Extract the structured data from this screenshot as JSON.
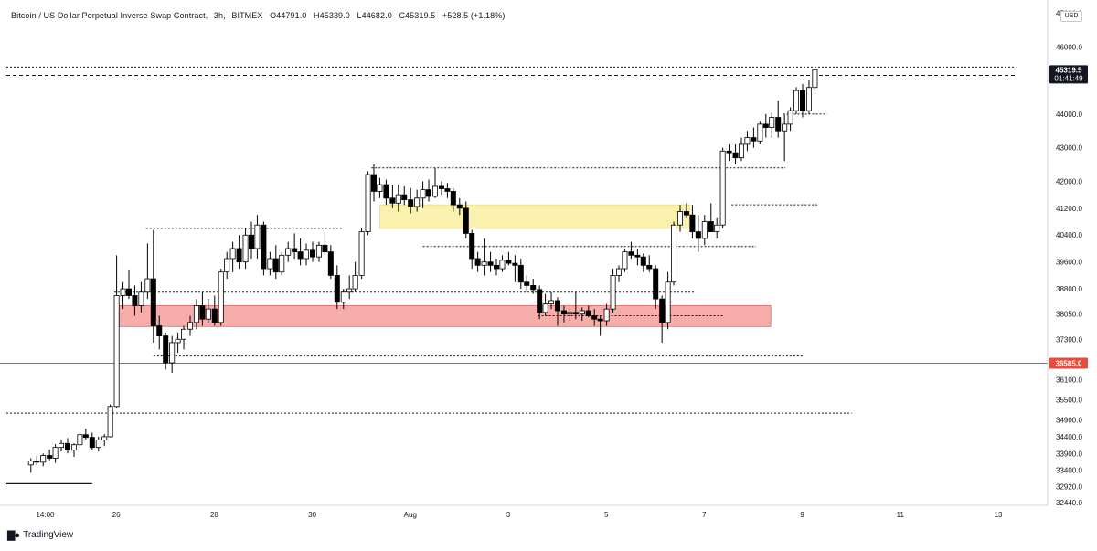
{
  "header": {
    "symbol": "Bitcoin / US Dollar Perpetual Inverse Swap Contract",
    "interval": "3h",
    "exchange": "BITMEX",
    "open": "O44791.0",
    "high": "H45339.0",
    "low": "L44682.0",
    "close": "C45319.5",
    "change": "+528.5 (+1.18%)"
  },
  "currency_label": "USD",
  "branding": "TradingView",
  "colors": {
    "up": "#ffffff",
    "down": "#000000",
    "support_zone": "#f7a6a1",
    "resistance_zone": "#fbf0a6",
    "alert_line": "#e74c3c",
    "text": "#131722",
    "axis_bg": "#ffffff"
  },
  "price_labels": {
    "last_price": "45319.5",
    "countdown": "01:41:49",
    "alert_price": "36585.0"
  },
  "chart_data": {
    "type": "candlestick",
    "x_tick_labels": [
      "14:00",
      "26",
      "28",
      "30",
      "Aug",
      "3",
      "5",
      "7",
      "9",
      "11",
      "13"
    ],
    "y_tick_labels": [
      "47000.0",
      "46000.0",
      "44000.0",
      "43000.0",
      "42000.0",
      "41200.0",
      "40400.0",
      "39600.0",
      "38800.0",
      "38050.0",
      "37300.0",
      "36100.0",
      "35500.0",
      "34900.0",
      "34400.0",
      "33900.0",
      "33400.0",
      "32920.0",
      "32440.0"
    ],
    "ylim": [
      32440,
      47150
    ],
    "x_unit": "days since Jul 25 00:00",
    "candles": [
      {
        "x": 0.5,
        "o": 33560,
        "h": 33760,
        "l": 33330,
        "c": 33680
      },
      {
        "x": 0.62,
        "o": 33680,
        "h": 33820,
        "l": 33540,
        "c": 33640
      },
      {
        "x": 0.75,
        "o": 33640,
        "h": 33900,
        "l": 33520,
        "c": 33840
      },
      {
        "x": 0.88,
        "o": 33840,
        "h": 34020,
        "l": 33700,
        "c": 33760
      },
      {
        "x": 1.0,
        "o": 33760,
        "h": 34180,
        "l": 33620,
        "c": 34080
      },
      {
        "x": 1.12,
        "o": 34080,
        "h": 34320,
        "l": 33960,
        "c": 34200
      },
      {
        "x": 1.25,
        "o": 34200,
        "h": 34360,
        "l": 33900,
        "c": 34000
      },
      {
        "x": 1.38,
        "o": 34000,
        "h": 34200,
        "l": 33800,
        "c": 34160
      },
      {
        "x": 1.5,
        "o": 34160,
        "h": 34560,
        "l": 34060,
        "c": 34460
      },
      {
        "x": 1.62,
        "o": 34460,
        "h": 34640,
        "l": 34320,
        "c": 34380
      },
      {
        "x": 1.75,
        "o": 34380,
        "h": 34520,
        "l": 34020,
        "c": 34080
      },
      {
        "x": 1.88,
        "o": 34080,
        "h": 34400,
        "l": 33960,
        "c": 34300
      },
      {
        "x": 2.0,
        "o": 34300,
        "h": 34480,
        "l": 34120,
        "c": 34400
      },
      {
        "x": 2.12,
        "o": 34400,
        "h": 35360,
        "l": 34380,
        "c": 35300
      },
      {
        "x": 2.25,
        "o": 35300,
        "h": 39800,
        "l": 35240,
        "c": 38600
      },
      {
        "x": 2.38,
        "o": 38600,
        "h": 39000,
        "l": 38200,
        "c": 38800
      },
      {
        "x": 2.5,
        "o": 38800,
        "h": 39350,
        "l": 38500,
        "c": 38600
      },
      {
        "x": 2.62,
        "o": 38600,
        "h": 38900,
        "l": 38000,
        "c": 38300
      },
      {
        "x": 2.75,
        "o": 38300,
        "h": 39000,
        "l": 38100,
        "c": 38700
      },
      {
        "x": 2.88,
        "o": 38700,
        "h": 40150,
        "l": 38500,
        "c": 39100
      },
      {
        "x": 3.0,
        "o": 39100,
        "h": 40550,
        "l": 37200,
        "c": 37700
      },
      {
        "x": 3.12,
        "o": 37700,
        "h": 38000,
        "l": 37000,
        "c": 37400
      },
      {
        "x": 3.25,
        "o": 37400,
        "h": 37500,
        "l": 36400,
        "c": 36600
      },
      {
        "x": 3.38,
        "o": 36600,
        "h": 37400,
        "l": 36300,
        "c": 37200
      },
      {
        "x": 3.5,
        "o": 37200,
        "h": 37500,
        "l": 36900,
        "c": 37300
      },
      {
        "x": 3.62,
        "o": 37300,
        "h": 37700,
        "l": 37000,
        "c": 37600
      },
      {
        "x": 3.75,
        "o": 37600,
        "h": 38000,
        "l": 37400,
        "c": 37800
      },
      {
        "x": 3.88,
        "o": 37800,
        "h": 38500,
        "l": 37600,
        "c": 38300
      },
      {
        "x": 4.0,
        "o": 38300,
        "h": 38700,
        "l": 37700,
        "c": 37900
      },
      {
        "x": 4.12,
        "o": 37900,
        "h": 38500,
        "l": 37800,
        "c": 38200
      },
      {
        "x": 4.25,
        "o": 38200,
        "h": 38600,
        "l": 37700,
        "c": 37800
      },
      {
        "x": 4.38,
        "o": 37800,
        "h": 39400,
        "l": 37700,
        "c": 39300
      },
      {
        "x": 4.5,
        "o": 39300,
        "h": 39900,
        "l": 39100,
        "c": 39700
      },
      {
        "x": 4.62,
        "o": 39700,
        "h": 40200,
        "l": 39300,
        "c": 40000
      },
      {
        "x": 4.75,
        "o": 40000,
        "h": 40400,
        "l": 39400,
        "c": 39600
      },
      {
        "x": 4.88,
        "o": 39600,
        "h": 40600,
        "l": 39400,
        "c": 40400
      },
      {
        "x": 5.0,
        "o": 40400,
        "h": 40800,
        "l": 39700,
        "c": 40000
      },
      {
        "x": 5.12,
        "o": 40000,
        "h": 41000,
        "l": 39700,
        "c": 40700
      },
      {
        "x": 5.25,
        "o": 40700,
        "h": 40800,
        "l": 39200,
        "c": 39400
      },
      {
        "x": 5.38,
        "o": 39400,
        "h": 39900,
        "l": 39200,
        "c": 39700
      },
      {
        "x": 5.5,
        "o": 39700,
        "h": 40100,
        "l": 39100,
        "c": 39300
      },
      {
        "x": 5.62,
        "o": 39300,
        "h": 39900,
        "l": 39200,
        "c": 39800
      },
      {
        "x": 5.75,
        "o": 39800,
        "h": 40200,
        "l": 39600,
        "c": 40000
      },
      {
        "x": 5.88,
        "o": 40000,
        "h": 40450,
        "l": 39700,
        "c": 39900
      },
      {
        "x": 6.0,
        "o": 39900,
        "h": 40300,
        "l": 39500,
        "c": 39700
      },
      {
        "x": 6.12,
        "o": 39700,
        "h": 40150,
        "l": 39500,
        "c": 39950
      },
      {
        "x": 6.25,
        "o": 39950,
        "h": 40200,
        "l": 39600,
        "c": 39750
      },
      {
        "x": 6.38,
        "o": 39750,
        "h": 40200,
        "l": 39600,
        "c": 40100
      },
      {
        "x": 6.5,
        "o": 40100,
        "h": 40500,
        "l": 39800,
        "c": 39900
      },
      {
        "x": 6.62,
        "o": 39900,
        "h": 40100,
        "l": 39100,
        "c": 39200
      },
      {
        "x": 6.75,
        "o": 39200,
        "h": 39500,
        "l": 38200,
        "c": 38400
      },
      {
        "x": 6.88,
        "o": 38400,
        "h": 38800,
        "l": 38200,
        "c": 38700
      },
      {
        "x": 7.0,
        "o": 38700,
        "h": 39200,
        "l": 38500,
        "c": 38800
      },
      {
        "x": 7.12,
        "o": 38800,
        "h": 39600,
        "l": 38700,
        "c": 39200
      },
      {
        "x": 7.25,
        "o": 39200,
        "h": 40600,
        "l": 39100,
        "c": 40500
      },
      {
        "x": 7.38,
        "o": 40500,
        "h": 42300,
        "l": 40400,
        "c": 42200
      },
      {
        "x": 7.5,
        "o": 42200,
        "h": 42500,
        "l": 41400,
        "c": 41700
      },
      {
        "x": 7.62,
        "o": 41700,
        "h": 42100,
        "l": 41500,
        "c": 41900
      },
      {
        "x": 7.75,
        "o": 41900,
        "h": 42050,
        "l": 41300,
        "c": 41500
      },
      {
        "x": 7.88,
        "o": 41500,
        "h": 41900,
        "l": 41200,
        "c": 41350
      },
      {
        "x": 8.0,
        "o": 41350,
        "h": 41900,
        "l": 41100,
        "c": 41600
      },
      {
        "x": 8.12,
        "o": 41600,
        "h": 41850,
        "l": 41300,
        "c": 41450
      },
      {
        "x": 8.25,
        "o": 41450,
        "h": 41800,
        "l": 41050,
        "c": 41250
      },
      {
        "x": 8.38,
        "o": 41250,
        "h": 41750,
        "l": 41100,
        "c": 41500
      },
      {
        "x": 8.5,
        "o": 41500,
        "h": 42000,
        "l": 41200,
        "c": 41750
      },
      {
        "x": 8.62,
        "o": 41750,
        "h": 42050,
        "l": 41400,
        "c": 41550
      },
      {
        "x": 8.75,
        "o": 41550,
        "h": 42400,
        "l": 41500,
        "c": 41850
      },
      {
        "x": 8.88,
        "o": 41850,
        "h": 42000,
        "l": 41600,
        "c": 41780
      },
      {
        "x": 9.0,
        "o": 41780,
        "h": 41950,
        "l": 41500,
        "c": 41700
      },
      {
        "x": 9.12,
        "o": 41700,
        "h": 41800,
        "l": 41100,
        "c": 41300
      },
      {
        "x": 9.25,
        "o": 41300,
        "h": 41500,
        "l": 41000,
        "c": 41200
      },
      {
        "x": 9.38,
        "o": 41200,
        "h": 41400,
        "l": 40300,
        "c": 40450
      },
      {
        "x": 9.5,
        "o": 40450,
        "h": 40550,
        "l": 39400,
        "c": 39700
      },
      {
        "x": 9.62,
        "o": 39700,
        "h": 39900,
        "l": 39300,
        "c": 39500
      },
      {
        "x": 9.75,
        "o": 39500,
        "h": 40300,
        "l": 39200,
        "c": 39600
      },
      {
        "x": 9.88,
        "o": 39600,
        "h": 39900,
        "l": 39300,
        "c": 39500
      },
      {
        "x": 10.0,
        "o": 39500,
        "h": 39700,
        "l": 39200,
        "c": 39400
      },
      {
        "x": 10.12,
        "o": 39400,
        "h": 39800,
        "l": 39300,
        "c": 39650
      },
      {
        "x": 10.25,
        "o": 39650,
        "h": 39900,
        "l": 39500,
        "c": 39560
      },
      {
        "x": 10.38,
        "o": 39560,
        "h": 39800,
        "l": 39000,
        "c": 39500
      },
      {
        "x": 10.5,
        "o": 39500,
        "h": 39700,
        "l": 38800,
        "c": 39000
      },
      {
        "x": 10.62,
        "o": 39000,
        "h": 39200,
        "l": 38700,
        "c": 38900
      },
      {
        "x": 10.75,
        "o": 38900,
        "h": 39100,
        "l": 38650,
        "c": 38780
      },
      {
        "x": 10.88,
        "o": 38780,
        "h": 38900,
        "l": 37900,
        "c": 38100
      },
      {
        "x": 11.0,
        "o": 38100,
        "h": 38650,
        "l": 38000,
        "c": 38350
      },
      {
        "x": 11.12,
        "o": 38350,
        "h": 38700,
        "l": 38200,
        "c": 38450
      },
      {
        "x": 11.25,
        "o": 38450,
        "h": 38550,
        "l": 37700,
        "c": 38150
      },
      {
        "x": 11.38,
        "o": 38150,
        "h": 38300,
        "l": 37800,
        "c": 38050
      },
      {
        "x": 11.5,
        "o": 38050,
        "h": 38200,
        "l": 37850,
        "c": 38100
      },
      {
        "x": 11.62,
        "o": 38100,
        "h": 38700,
        "l": 37900,
        "c": 38050
      },
      {
        "x": 11.75,
        "o": 38050,
        "h": 38250,
        "l": 37850,
        "c": 38150
      },
      {
        "x": 11.88,
        "o": 38150,
        "h": 38300,
        "l": 37950,
        "c": 38000
      },
      {
        "x": 12.0,
        "o": 38000,
        "h": 38200,
        "l": 37700,
        "c": 37900
      },
      {
        "x": 12.12,
        "o": 37900,
        "h": 38000,
        "l": 37400,
        "c": 37850
      },
      {
        "x": 12.25,
        "o": 37850,
        "h": 38350,
        "l": 37700,
        "c": 38200
      },
      {
        "x": 12.38,
        "o": 38200,
        "h": 39400,
        "l": 38100,
        "c": 39200
      },
      {
        "x": 12.5,
        "o": 39200,
        "h": 39500,
        "l": 39000,
        "c": 39400
      },
      {
        "x": 12.62,
        "o": 39400,
        "h": 40000,
        "l": 39300,
        "c": 39900
      },
      {
        "x": 12.75,
        "o": 39900,
        "h": 40200,
        "l": 39700,
        "c": 39800
      },
      {
        "x": 12.88,
        "o": 39800,
        "h": 40000,
        "l": 39500,
        "c": 39750
      },
      {
        "x": 13.0,
        "o": 39750,
        "h": 39850,
        "l": 39300,
        "c": 39500
      },
      {
        "x": 13.12,
        "o": 39500,
        "h": 39800,
        "l": 39300,
        "c": 39400
      },
      {
        "x": 13.25,
        "o": 39400,
        "h": 39500,
        "l": 38200,
        "c": 38500
      },
      {
        "x": 13.38,
        "o": 38500,
        "h": 38600,
        "l": 37200,
        "c": 37800
      },
      {
        "x": 13.5,
        "o": 37800,
        "h": 39300,
        "l": 37600,
        "c": 39000
      },
      {
        "x": 13.62,
        "o": 39000,
        "h": 40800,
        "l": 38900,
        "c": 40700
      },
      {
        "x": 13.75,
        "o": 40700,
        "h": 41300,
        "l": 40500,
        "c": 41100
      },
      {
        "x": 13.88,
        "o": 41100,
        "h": 41350,
        "l": 40900,
        "c": 41000
      },
      {
        "x": 14.0,
        "o": 41000,
        "h": 41300,
        "l": 40300,
        "c": 40500
      },
      {
        "x": 14.12,
        "o": 40500,
        "h": 41000,
        "l": 39900,
        "c": 40300
      },
      {
        "x": 14.25,
        "o": 40300,
        "h": 41000,
        "l": 40100,
        "c": 40800
      },
      {
        "x": 14.38,
        "o": 40800,
        "h": 41350,
        "l": 40600,
        "c": 40500
      },
      {
        "x": 14.5,
        "o": 40500,
        "h": 40900,
        "l": 40300,
        "c": 40700
      },
      {
        "x": 14.62,
        "o": 40700,
        "h": 43000,
        "l": 40600,
        "c": 42900
      },
      {
        "x": 14.75,
        "o": 42900,
        "h": 43100,
        "l": 42600,
        "c": 42850
      },
      {
        "x": 14.88,
        "o": 42850,
        "h": 43100,
        "l": 42500,
        "c": 42700
      },
      {
        "x": 15.0,
        "o": 42700,
        "h": 43300,
        "l": 42600,
        "c": 43100
      },
      {
        "x": 15.12,
        "o": 43100,
        "h": 43500,
        "l": 42900,
        "c": 43300
      },
      {
        "x": 15.25,
        "o": 43300,
        "h": 43600,
        "l": 43000,
        "c": 43200
      },
      {
        "x": 15.38,
        "o": 43200,
        "h": 43800,
        "l": 43100,
        "c": 43700
      },
      {
        "x": 15.5,
        "o": 43700,
        "h": 44000,
        "l": 43300,
        "c": 43600
      },
      {
        "x": 15.62,
        "o": 43600,
        "h": 44050,
        "l": 43300,
        "c": 43900
      },
      {
        "x": 15.75,
        "o": 43900,
        "h": 44400,
        "l": 43300,
        "c": 43500
      },
      {
        "x": 15.88,
        "o": 43500,
        "h": 44000,
        "l": 42600,
        "c": 43700
      },
      {
        "x": 16.0,
        "o": 43700,
        "h": 44200,
        "l": 43500,
        "c": 44100
      },
      {
        "x": 16.12,
        "o": 44100,
        "h": 44800,
        "l": 44000,
        "c": 44700
      },
      {
        "x": 16.25,
        "o": 44700,
        "h": 44900,
        "l": 43900,
        "c": 44100
      },
      {
        "x": 16.38,
        "o": 44100,
        "h": 45000,
        "l": 44000,
        "c": 44791
      },
      {
        "x": 16.5,
        "o": 44791,
        "h": 45339,
        "l": 44682,
        "c": 45319.5
      }
    ],
    "zones": [
      {
        "name": "resistance",
        "x0": 7.62,
        "x1": 13.95,
        "y0": 40600,
        "y1": 41300
      },
      {
        "name": "support",
        "x0": 2.3,
        "x1": 15.6,
        "y0": 37680,
        "y1": 38300
      }
    ],
    "levels": [
      {
        "price": 45400,
        "x0": 0.0,
        "x1": 20.6,
        "style": "dotted"
      },
      {
        "price": 45150,
        "x0": 0.0,
        "x1": 20.6,
        "style": "dashed"
      },
      {
        "price": 44000,
        "x0": 15.85,
        "x1": 16.75,
        "style": "dotted"
      },
      {
        "price": 42400,
        "x0": 7.45,
        "x1": 15.9,
        "style": "dotted"
      },
      {
        "price": 41300,
        "x0": 14.8,
        "x1": 16.55,
        "style": "dotted"
      },
      {
        "price": 40060,
        "x0": 8.5,
        "x1": 15.3,
        "style": "dotted"
      },
      {
        "price": 40600,
        "x0": 2.85,
        "x1": 6.85,
        "style": "dotted"
      },
      {
        "price": 38700,
        "x0": 2.2,
        "x1": 14.05,
        "style": "dotted"
      },
      {
        "price": 38000,
        "x0": 10.85,
        "x1": 14.65,
        "style": "dotted"
      },
      {
        "price": 36800,
        "x0": 3.0,
        "x1": 16.25,
        "style": "dotted"
      },
      {
        "price": 35100,
        "x0": 0.0,
        "x1": 17.25,
        "style": "dotted"
      },
      {
        "price": 33000,
        "x0": 0.0,
        "x1": 1.75,
        "style": "solid"
      }
    ],
    "alert_level": 36585,
    "last_price": 45319.5
  }
}
